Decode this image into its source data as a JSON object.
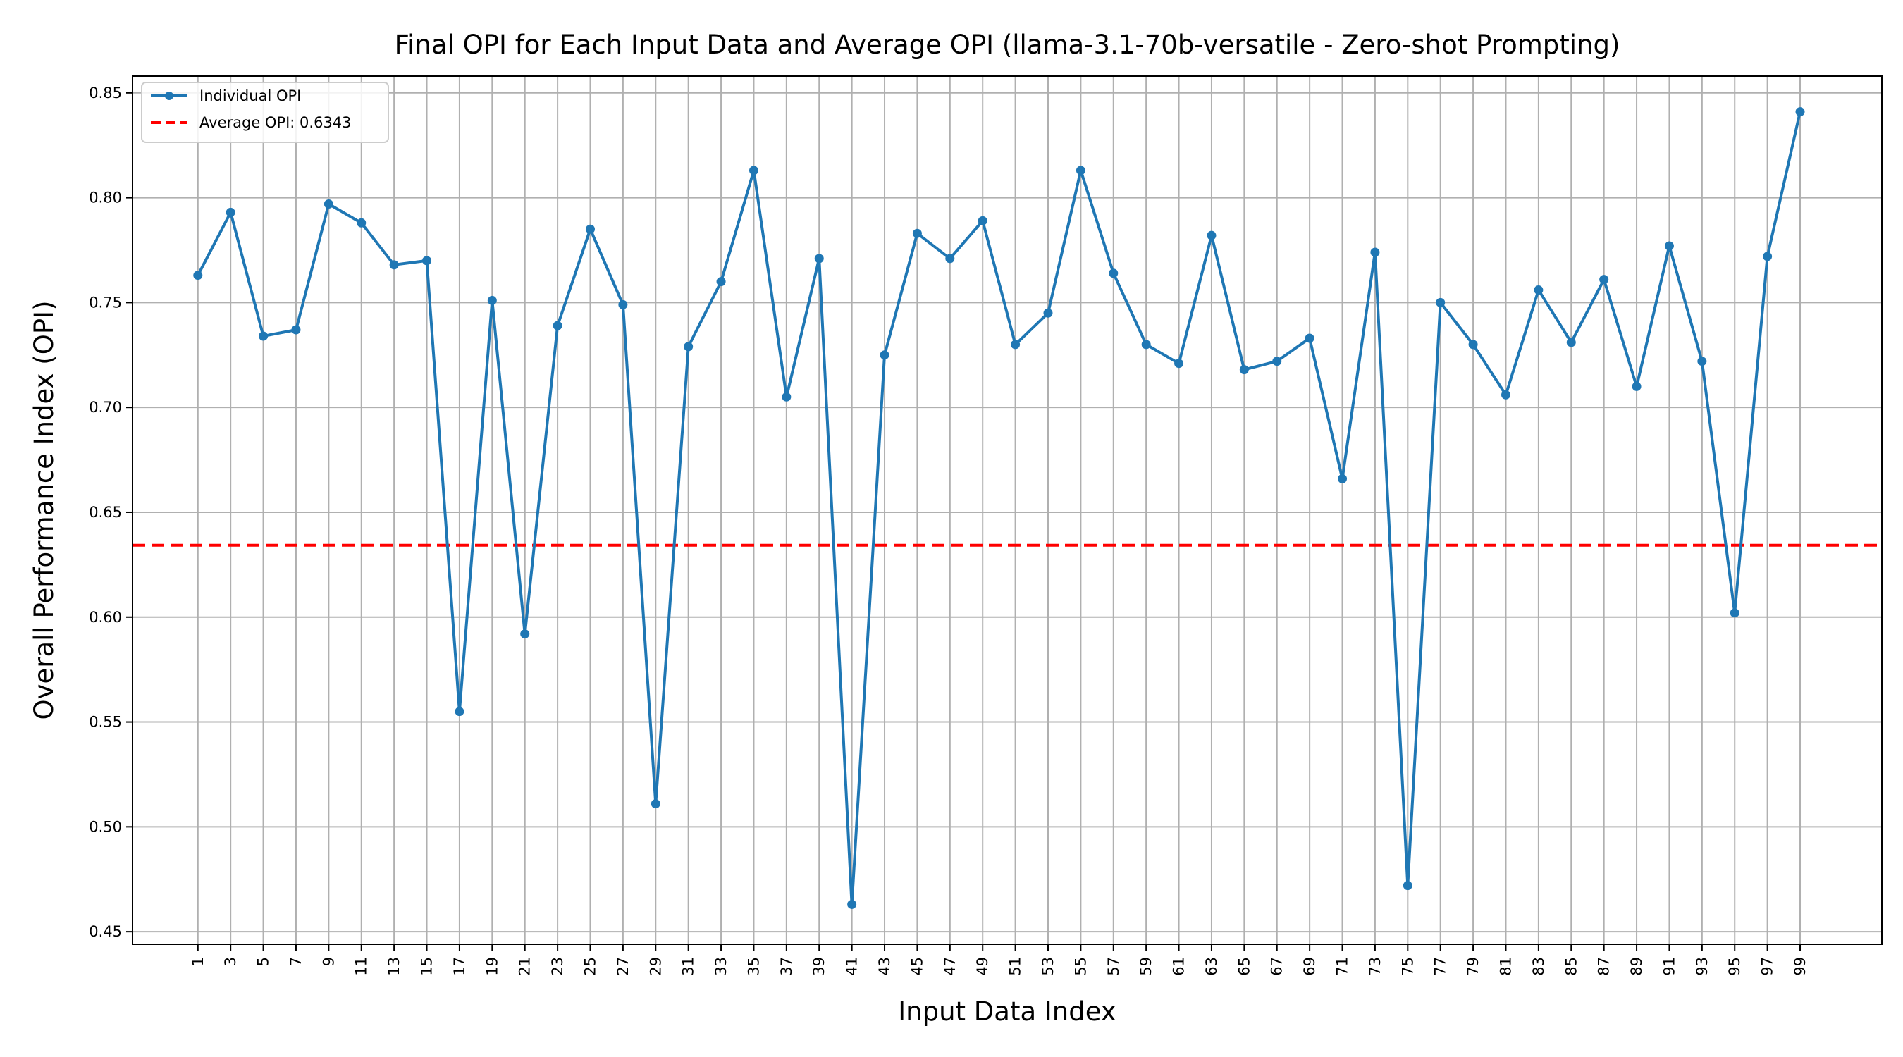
{
  "chart_data": {
    "type": "line",
    "title": "Final OPI for Each Input Data and Average OPI (llama-3.1-70b-versatile - Zero-shot Prompting)",
    "xlabel": "Input Data Index",
    "ylabel": "Overall Performance Index (OPI)",
    "xlim": [
      -3,
      104
    ],
    "ylim": [
      0.444,
      0.858
    ],
    "yticks": [
      0.45,
      0.5,
      0.55,
      0.6,
      0.65,
      0.7,
      0.75,
      0.8,
      0.85
    ],
    "ytick_labels": [
      "0.45",
      "0.50",
      "0.55",
      "0.60",
      "0.65",
      "0.70",
      "0.75",
      "0.80",
      "0.85"
    ],
    "xticks": [
      1,
      3,
      5,
      7,
      9,
      11,
      13,
      15,
      17,
      19,
      21,
      23,
      25,
      27,
      29,
      31,
      33,
      35,
      37,
      39,
      41,
      43,
      45,
      47,
      49,
      51,
      53,
      55,
      57,
      59,
      61,
      63,
      65,
      67,
      69,
      71,
      73,
      75,
      77,
      79,
      81,
      83,
      85,
      87,
      89,
      91,
      93,
      95,
      97,
      99
    ],
    "xtick_labels": [
      "1",
      "3",
      "5",
      "7",
      "9",
      "11",
      "13",
      "15",
      "17",
      "19",
      "21",
      "23",
      "25",
      "27",
      "29",
      "31",
      "33",
      "35",
      "37",
      "39",
      "41",
      "43",
      "45",
      "47",
      "49",
      "51",
      "53",
      "55",
      "57",
      "59",
      "61",
      "63",
      "65",
      "67",
      "69",
      "71",
      "73",
      "75",
      "77",
      "79",
      "81",
      "83",
      "85",
      "87",
      "89",
      "91",
      "93",
      "95",
      "97",
      "99"
    ],
    "grid": true,
    "legend_position": "top-left",
    "series": [
      {
        "name": "Individual OPI",
        "color": "#1f77b4",
        "marker": "circle",
        "x": [
          1,
          3,
          5,
          7,
          9,
          11,
          13,
          15,
          17,
          19,
          21,
          23,
          25,
          27,
          29,
          31,
          33,
          35,
          37,
          39,
          41,
          43,
          45,
          47,
          49,
          51,
          53,
          55,
          57,
          59,
          61,
          63,
          65,
          67,
          69,
          71,
          73,
          75,
          77,
          79,
          81,
          83,
          85,
          87,
          89,
          91,
          93,
          95,
          97,
          99
        ],
        "y": [
          0.763,
          0.793,
          0.734,
          0.737,
          0.797,
          0.788,
          0.768,
          0.77,
          0.555,
          0.751,
          0.592,
          0.739,
          0.785,
          0.749,
          0.511,
          0.729,
          0.76,
          0.813,
          0.705,
          0.771,
          0.463,
          0.725,
          0.783,
          0.771,
          0.789,
          0.73,
          0.745,
          0.813,
          0.764,
          0.73,
          0.721,
          0.782,
          0.718,
          0.722,
          0.733,
          0.666,
          0.774,
          0.472,
          0.75,
          0.73,
          0.706,
          0.756,
          0.731,
          0.761,
          0.71,
          0.777,
          0.722,
          0.602,
          0.772,
          0.841
        ]
      }
    ],
    "average": {
      "name": "Average OPI: 0.6343",
      "value": 0.6343,
      "color": "#ff0000",
      "style": "dashed"
    }
  }
}
